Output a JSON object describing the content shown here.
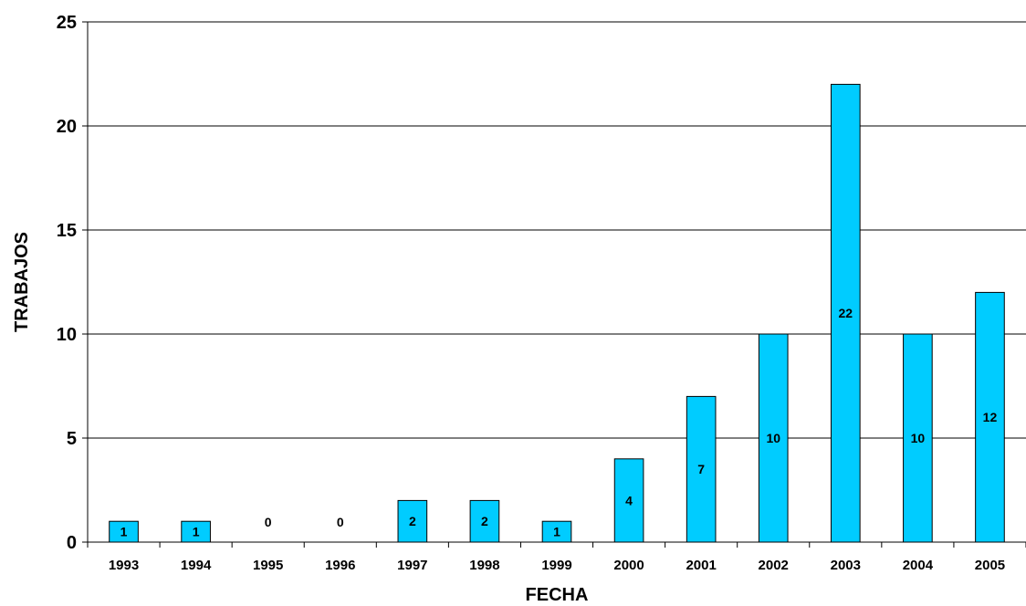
{
  "chart_data": {
    "type": "bar",
    "title": "",
    "xlabel": "FECHA",
    "ylabel": "TRABAJOS",
    "categories": [
      "1993",
      "1994",
      "1995",
      "1996",
      "1997",
      "1998",
      "1999",
      "2000",
      "2001",
      "2002",
      "2003",
      "2004",
      "2005"
    ],
    "values": [
      1,
      1,
      0,
      0,
      2,
      2,
      1,
      4,
      7,
      10,
      22,
      10,
      12
    ],
    "ylim": [
      0,
      25
    ],
    "yticks": [
      "0",
      "5",
      "10",
      "15",
      "20",
      "25"
    ],
    "grid": true,
    "legend": "none",
    "bar_color": "#00CCFF",
    "bar_edge_color": "#000000"
  }
}
